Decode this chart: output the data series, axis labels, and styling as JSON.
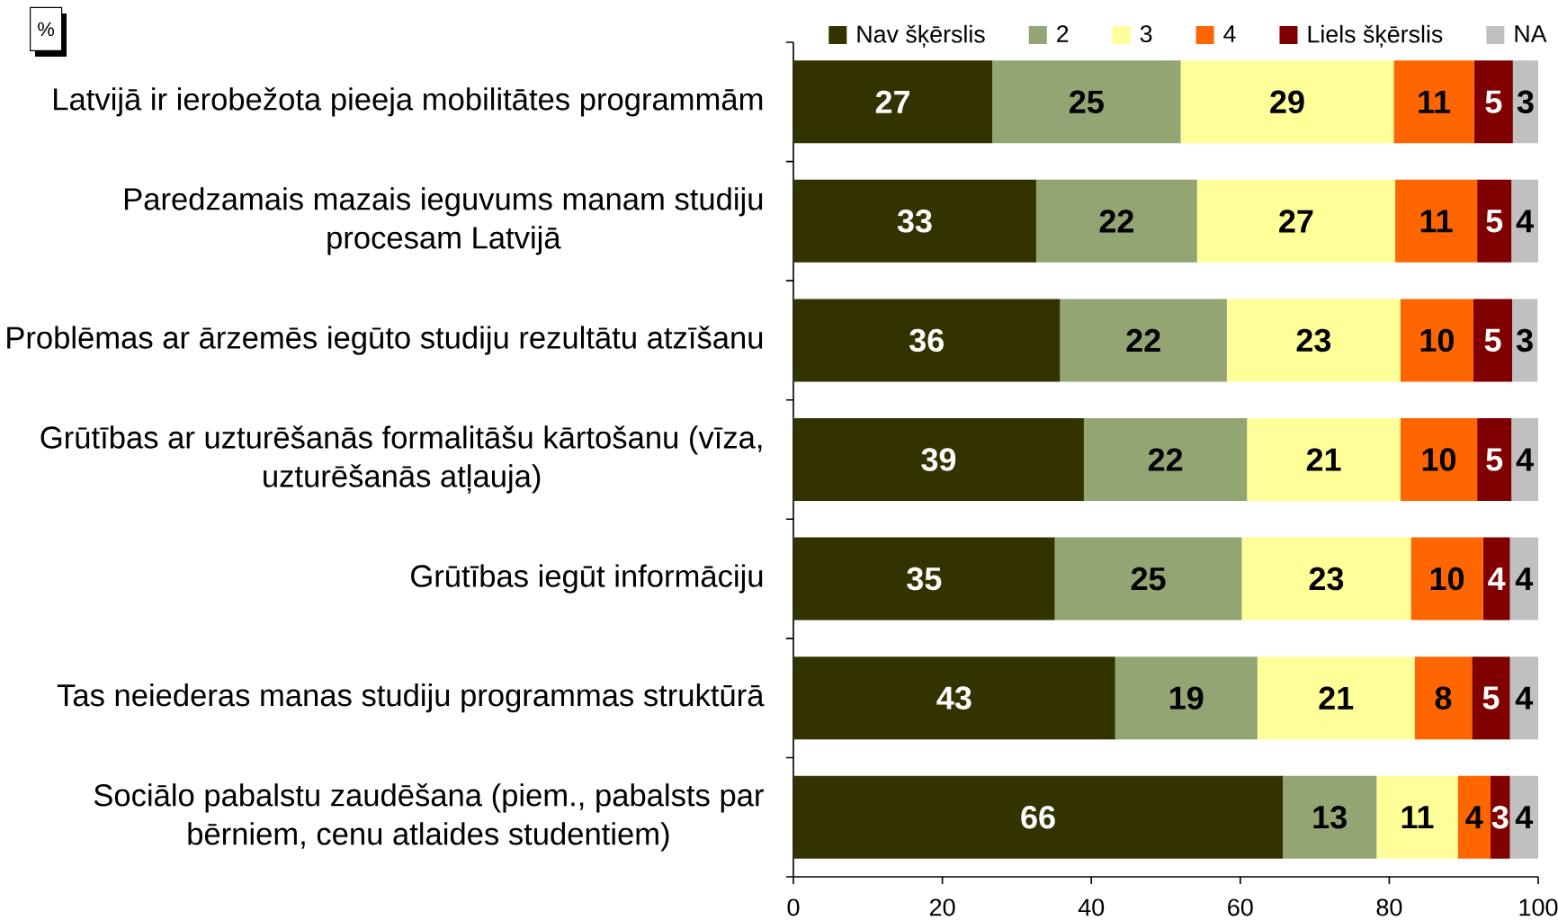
{
  "chart_data": {
    "type": "bar",
    "orientation": "horizontal",
    "stacked": true,
    "annotations": [
      "%"
    ],
    "categories": [
      "Latvijā ir ierobežota pieeja mobilitātes programmām",
      "Paredzamais mazais ieguvums manam studiju procesam Latvijā",
      "Problēmas ar ārzemēs iegūto studiju rezultātu atzīšanu",
      "Grūtības ar uzturēšanās formalitāšu kārtošanu (vīza, uzturēšanās atļauja)",
      "Grūtības iegūt informāciju",
      "Tas neiederas manas studiju programmas struktūrā",
      "Sociālo pabalstu zaudēšana (piem., pabalsts par bērniem, cenu atlaides studentiem)"
    ],
    "series": [
      {
        "name": "Nav šķērslis",
        "color": "#333300",
        "values": [
          26.7,
          32.6,
          35.8,
          39.0,
          35.1,
          43.2,
          65.7
        ],
        "value_labels": [
          "27",
          "33",
          "36",
          "39",
          "35",
          "43",
          "66"
        ]
      },
      {
        "name": "2",
        "color": "#93a573",
        "values": [
          25.3,
          21.6,
          22.4,
          21.9,
          25.1,
          19.1,
          12.6
        ],
        "value_labels": [
          "25",
          "22",
          "22",
          "22",
          "25",
          "19",
          "13"
        ]
      },
      {
        "name": "3",
        "color": "#ffff99",
        "values": [
          28.6,
          26.6,
          23.3,
          20.6,
          22.7,
          21.1,
          10.9
        ],
        "value_labels": [
          "29",
          "27",
          "23",
          "21",
          "23",
          "21",
          "11"
        ]
      },
      {
        "name": "4",
        "color": "#ff6600",
        "values": [
          10.8,
          11.0,
          9.8,
          10.3,
          9.7,
          7.7,
          4.4
        ],
        "value_labels": [
          "11",
          "11",
          "10",
          "10",
          "10",
          "8",
          "4"
        ]
      },
      {
        "name": "Liels šķērslis",
        "color": "#800000",
        "values": [
          5.2,
          4.6,
          5.2,
          4.6,
          3.6,
          5.1,
          2.6
        ],
        "value_labels": [
          "5",
          "5",
          "5",
          "5",
          "4",
          "5",
          "3"
        ]
      },
      {
        "name": "NA",
        "color": "#c0c0c0",
        "values": [
          3.4,
          3.6,
          3.4,
          3.6,
          3.8,
          3.8,
          3.8
        ],
        "value_labels": [
          "3",
          "4",
          "3",
          "4",
          "4",
          "4",
          "4"
        ]
      }
    ],
    "xlim": [
      0,
      100
    ],
    "xticks": [
      0,
      20,
      40,
      60,
      80,
      100
    ],
    "legend": "top"
  }
}
